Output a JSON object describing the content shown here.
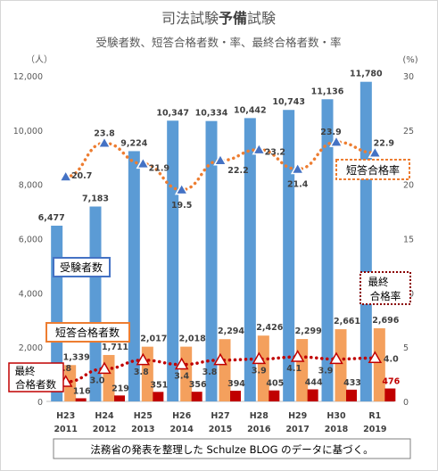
{
  "chart_data": {
    "type": "bar",
    "title_parts": [
      "司法試験",
      "予備",
      "試験"
    ],
    "subtitle": "受験者数、短答合格者数・率、最終合格者数・率",
    "left_unit": "（人）",
    "right_unit": "(%)",
    "left_ylim": [
      0,
      12000
    ],
    "left_ticks": [
      "0",
      "2,000",
      "4,000",
      "6,000",
      "8,000",
      "10,000",
      "12,000"
    ],
    "right_ylim": [
      0,
      30
    ],
    "right_ticks": [
      "0",
      "5",
      "10",
      "15",
      "20",
      "25",
      "30"
    ],
    "categories": [
      {
        "era": "H23",
        "year": "2011"
      },
      {
        "era": "H24",
        "year": "2012"
      },
      {
        "era": "H25",
        "year": "2013"
      },
      {
        "era": "H26",
        "year": "2014"
      },
      {
        "era": "H27",
        "year": "2015"
      },
      {
        "era": "H28",
        "year": "2016"
      },
      {
        "era": "H29",
        "year": "2017"
      },
      {
        "era": "H30",
        "year": "2018"
      },
      {
        "era": "R1",
        "year": "2019"
      }
    ],
    "bar_series": [
      {
        "name": "受験者数",
        "color": "#5b9bd5",
        "values": [
          6477,
          7183,
          9224,
          10347,
          10334,
          10442,
          10743,
          11136,
          11780
        ],
        "labels": [
          "6,477",
          "7,183",
          "9,224",
          "10,347",
          "10,334",
          "10,442",
          "10,743",
          "11,136",
          "11,780"
        ]
      },
      {
        "name": "短答合格者数",
        "color": "#f4a05d",
        "values": [
          1339,
          1711,
          2017,
          2018,
          2294,
          2426,
          2299,
          2661,
          2696
        ],
        "labels": [
          "1,339",
          "1,711",
          "2,017",
          "2,018",
          "2,294",
          "2,426",
          "2,299",
          "2,661",
          "2,696"
        ]
      },
      {
        "name": "最終合格者数",
        "color": "#c00000",
        "values": [
          116,
          219,
          351,
          356,
          394,
          405,
          444,
          433,
          476
        ],
        "labels": [
          "116",
          "219",
          "351",
          "356",
          "394",
          "405",
          "444",
          "433",
          "476"
        ]
      }
    ],
    "line_series": [
      {
        "name": "短答合格率",
        "color": "#ed7d31",
        "values": [
          20.7,
          23.8,
          21.9,
          19.5,
          22.2,
          23.2,
          21.4,
          23.9,
          22.9
        ],
        "labels": [
          "20.7",
          "23.8",
          "21.9",
          "19.5",
          "22.2",
          "23.2",
          "21.4",
          "23.9",
          "22.9"
        ]
      },
      {
        "name": "最終合格率",
        "color": "#c00000",
        "values": [
          1.8,
          3.0,
          3.8,
          3.4,
          3.8,
          3.9,
          4.1,
          3.9,
          4.0
        ],
        "labels": [
          "1.8",
          "3.0",
          "3.8",
          "3.4",
          "3.8",
          "3.9",
          "4.1",
          "3.9",
          "4.0"
        ]
      }
    ],
    "marker_color": "#4472c4",
    "legend_boxes": {
      "juken": "受験者数",
      "tanto": "短答合格者数",
      "saishu_line1": "最終",
      "saishu_line2": "合格者数",
      "tanto_rate": "短答合格率",
      "saishu_rate_line1": "最終",
      "saishu_rate_line2": "合格率"
    },
    "footnote": "法務省の発表を整理した Schulze BLOG のデータに基づく。"
  }
}
